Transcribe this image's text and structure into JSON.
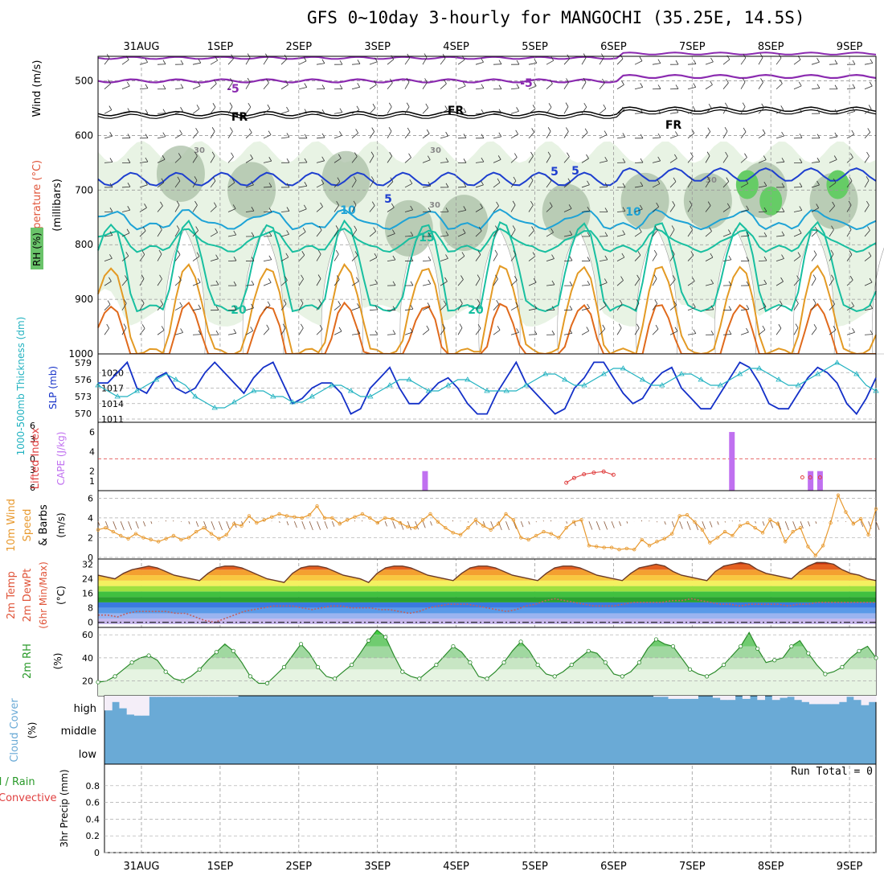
{
  "title": "GFS 0~10day 3-hourly for MANGOCHI (35.25E, 14.5S)",
  "date_labels": [
    "31AUG",
    "1SEP",
    "2SEP",
    "3SEP",
    "4SEP",
    "5SEP",
    "6SEP",
    "7SEP",
    "8SEP",
    "9SEP"
  ],
  "colors": {
    "rh_fill": "#e8f3e4",
    "rh_dark": "#a9bfa6",
    "temp_blue": "#1e3fcf",
    "temp_cyan": "#1ea3d6",
    "temp_teal": "#18bfa0",
    "temp_orange": "#e39a24",
    "temp_dark_orange": "#e06a1c",
    "purple": "#8b2bb0",
    "slp": "#1430c8",
    "thickness": "#21b2c0",
    "cape": "#c070f0",
    "wind10": "#e89a30",
    "cloud": "#6aaad6"
  },
  "panels": {
    "upper": {
      "label_wind": "Wind (m/s)",
      "label_temp": "Temperature (°C)",
      "label_rh": "RH (%)",
      "label_mb": "(millibars)"
    },
    "slp": {
      "label_thick": "1000-500mb Thickness (dm)",
      "label_slp": "SLP (mb)"
    },
    "li": {
      "label_li": "Lifted Index",
      "label_cape": "CAPE (J/kg)"
    },
    "wind10": {
      "label_a": "10m Wind",
      "label_b": "Speed",
      "label_c": "& Barbs",
      "unit": "(m/s)"
    },
    "temp2m": {
      "label_a": "2m Temp",
      "label_b": "2m DewPt",
      "label_c": "(6hr Min/Max)",
      "unit": "(°C)"
    },
    "rh2m": {
      "label": "2m RH",
      "unit": "(%)"
    },
    "cloud": {
      "label": "Cloud Cover",
      "unit": "(%)",
      "levels": [
        "high",
        "middle",
        "low"
      ]
    },
    "precip": {
      "label_a": "Total / Rain",
      "label_b": "Convective",
      "label_c": "3hr Precip (mm)",
      "run_total": "Run Total = 0"
    }
  },
  "chart_data": [
    {
      "type": "heatmap",
      "title": "Upper-air cross section",
      "ylabel": "millibars",
      "y_ticks": [
        500,
        600,
        700,
        800,
        900,
        1000
      ],
      "ylim": [
        455,
        1000
      ],
      "x": [
        "31AUG",
        "1SEP",
        "2SEP",
        "3SEP",
        "4SEP",
        "5SEP",
        "6SEP",
        "7SEP",
        "8SEP",
        "9SEP"
      ],
      "contour_labels": [
        "-5",
        "-5",
        "FR",
        "FR",
        "FR",
        "5",
        "5",
        "5",
        "10",
        "10",
        "15",
        "20",
        "20",
        "30",
        "30",
        "30",
        "30"
      ],
      "temperature_contours_c": [
        -5,
        0,
        5,
        10,
        15,
        20,
        25,
        30
      ]
    },
    {
      "type": "line",
      "title": "SLP and 1000-500mb thickness",
      "series": [
        {
          "name": "SLP (mb)",
          "ylim": [
            1011,
            1023
          ],
          "y_ticks": [
            1011,
            1014,
            1017,
            1020
          ],
          "values": [
            1018,
            1018,
            1020,
            1022,
            1017,
            1016,
            1019,
            1020,
            1017,
            1016,
            1017,
            1020,
            1022,
            1020,
            1018,
            1016,
            1019,
            1021,
            1022,
            1018,
            1014,
            1015,
            1017,
            1018,
            1018,
            1016,
            1012,
            1013,
            1017,
            1019,
            1021,
            1017,
            1014,
            1014,
            1016,
            1018,
            1019,
            1017,
            1014,
            1012,
            1012,
            1016,
            1019,
            1022,
            1018,
            1016,
            1014,
            1012,
            1013,
            1017,
            1019,
            1022,
            1022,
            1019,
            1016,
            1014,
            1015,
            1018,
            1020,
            1021,
            1017,
            1015,
            1013,
            1013,
            1016,
            1019,
            1022,
            1021,
            1018,
            1014,
            1013,
            1013,
            1016,
            1019,
            1021,
            1020,
            1018,
            1014,
            1012,
            1015,
            1019
          ]
        },
        {
          "name": "1000-500mb Thickness (dm)",
          "ylim": [
            569,
            580
          ],
          "y_ticks": [
            570,
            573,
            576,
            579
          ],
          "values": [
            575,
            574,
            573,
            573,
            574,
            575,
            576,
            577,
            576,
            575,
            573,
            572,
            571,
            571,
            572,
            573,
            574,
            574,
            573,
            573,
            572,
            572,
            573,
            574,
            575,
            575,
            574,
            573,
            573,
            574,
            575,
            576,
            576,
            575,
            574,
            574,
            575,
            576,
            576,
            575,
            574,
            574,
            574,
            574,
            575,
            576,
            577,
            577,
            576,
            575,
            575,
            576,
            577,
            578,
            578,
            577,
            576,
            575,
            575,
            576,
            577,
            577,
            576,
            575,
            575,
            576,
            577,
            578,
            578,
            577,
            576,
            575,
            575,
            576,
            577,
            578,
            579,
            578,
            577,
            575,
            574
          ]
        }
      ]
    },
    {
      "type": "bar",
      "title": "Lifted Index and CAPE",
      "series": [
        {
          "name": "CAPE (J/kg)",
          "y_ticks": [
            1,
            2,
            4,
            6
          ],
          "bars": [
            {
              "x": "3SEP 18Z",
              "value": 2
            },
            {
              "x": "7SEP 12Z",
              "value": 6
            },
            {
              "x": "8SEP 12Z",
              "value": 2
            },
            {
              "x": "8SEP 15Z",
              "value": 2
            }
          ]
        },
        {
          "name": "Lifted Index",
          "y_ticks": [
            -6,
            -3,
            0,
            3,
            6
          ],
          "reference": 0,
          "points": [
            {
              "x": "5SEP 09Z",
              "value": 4.5
            },
            {
              "x": "5SEP 12Z",
              "value": 3.6
            },
            {
              "x": "5SEP 15Z",
              "value": 2.9
            },
            {
              "x": "5SEP 18Z",
              "value": 2.6
            },
            {
              "x": "5SEP 21Z",
              "value": 2.4
            },
            {
              "x": "6SEP 00Z",
              "value": 3.0
            },
            {
              "x": "8SEP 09Z",
              "value": 3.5
            },
            {
              "x": "8SEP 12Z",
              "value": 3.5
            },
            {
              "x": "8SEP 15Z",
              "value": 3.5
            }
          ]
        }
      ]
    },
    {
      "type": "line",
      "title": "10m Wind Speed & Barbs",
      "ylabel": "(m/s)",
      "ylim": [
        0,
        6.5
      ],
      "y_ticks": [
        0,
        2,
        4,
        6
      ],
      "values": [
        2.8,
        3.0,
        2.6,
        2.2,
        1.9,
        2.4,
        2.0,
        1.8,
        1.6,
        1.9,
        2.2,
        1.8,
        2.0,
        2.6,
        3.0,
        2.4,
        1.9,
        2.3,
        3.4,
        3.2,
        4.2,
        3.5,
        3.8,
        4.1,
        4.4,
        4.2,
        4.1,
        4.0,
        4.3,
        5.2,
        4.0,
        4.0,
        3.4,
        3.8,
        4.1,
        4.4,
        4.0,
        3.5,
        4.0,
        3.9,
        3.5,
        3.1,
        3.0,
        3.8,
        4.4,
        3.6,
        3.0,
        2.5,
        2.3,
        3.0,
        3.8,
        3.2,
        2.8,
        3.4,
        4.4,
        3.8,
        2.0,
        1.8,
        2.2,
        2.6,
        2.4,
        2.0,
        3.0,
        3.6,
        3.8,
        1.2,
        1.1,
        1.0,
        1.0,
        0.8,
        0.9,
        0.8,
        1.8,
        1.2,
        1.6,
        1.9,
        2.4,
        4.2,
        4.3,
        3.6,
        2.8,
        1.5,
        2.0,
        2.6,
        2.2,
        3.2,
        3.5,
        3.0,
        2.5,
        3.8,
        3.4,
        1.6,
        2.6,
        3.0,
        1.1,
        0.2,
        1.2,
        3.5,
        6.3,
        4.6,
        3.4,
        3.9,
        2.3,
        4.9
      ]
    },
    {
      "type": "area",
      "title": "2m Temp / DewPt",
      "ylabel": "(°C)",
      "ylim": [
        -1,
        34
      ],
      "y_ticks": [
        0,
        8,
        16,
        24,
        32
      ],
      "series": [
        {
          "name": "2m Temp",
          "values": [
            26,
            25,
            24,
            27,
            29,
            30,
            31,
            30,
            28,
            26,
            25,
            24,
            23,
            27,
            30,
            31,
            31,
            30,
            28,
            26,
            24,
            23,
            22,
            27,
            30,
            31,
            31,
            30,
            28,
            26,
            25,
            24,
            22,
            27,
            30,
            31,
            31,
            30,
            28,
            26,
            25,
            24,
            23,
            27,
            30,
            31,
            31,
            30,
            28,
            26,
            25,
            24,
            23,
            27,
            30,
            31,
            31,
            30,
            28,
            26,
            25,
            24,
            23,
            27,
            30,
            31,
            32,
            31,
            28,
            26,
            25,
            24,
            23,
            28,
            31,
            32,
            33,
            32,
            29,
            27,
            26,
            25,
            24,
            28,
            31,
            33,
            33,
            32,
            29,
            27,
            26,
            24,
            23
          ]
        },
        {
          "name": "2m DewPt",
          "values": [
            4,
            4,
            3,
            5,
            6,
            6,
            6,
            6,
            5,
            5,
            3,
            1,
            0,
            2,
            4,
            6,
            7,
            8,
            9,
            9,
            9,
            8,
            7,
            8,
            9,
            9,
            8,
            8,
            8,
            7,
            7,
            6,
            5,
            6,
            8,
            9,
            10,
            10,
            10,
            9,
            8,
            7,
            6,
            7,
            9,
            10,
            12,
            13,
            12,
            11,
            10,
            9,
            9,
            9,
            10,
            11,
            11,
            11,
            11,
            12,
            12,
            13,
            12,
            11,
            10,
            10,
            9,
            10,
            10,
            10,
            10,
            9,
            10,
            10,
            11,
            11,
            11,
            11,
            11,
            11,
            11
          ]
        }
      ]
    },
    {
      "type": "area",
      "title": "2m RH",
      "ylabel": "(%)",
      "ylim": [
        10,
        65
      ],
      "y_ticks": [
        20,
        40,
        60
      ],
      "values": [
        19,
        20,
        24,
        30,
        36,
        40,
        42,
        38,
        28,
        22,
        20,
        24,
        30,
        38,
        45,
        52,
        46,
        36,
        24,
        18,
        18,
        25,
        32,
        42,
        52,
        44,
        32,
        24,
        22,
        28,
        34,
        44,
        55,
        64,
        58,
        42,
        28,
        24,
        22,
        28,
        34,
        42,
        50,
        45,
        36,
        24,
        22,
        28,
        36,
        46,
        54,
        46,
        34,
        26,
        24,
        28,
        34,
        40,
        46,
        44,
        36,
        26,
        24,
        28,
        36,
        48,
        56,
        52,
        50,
        40,
        30,
        26,
        24,
        28,
        34,
        42,
        50,
        62,
        48,
        36,
        38,
        40,
        50,
        55,
        44,
        34,
        26,
        28,
        32,
        40,
        46,
        50,
        40
      ]
    },
    {
      "type": "area",
      "title": "Cloud Cover",
      "ylabel": "(%)",
      "levels": [
        "high",
        "middle",
        "low"
      ],
      "high_cloud_pct": [
        70,
        30,
        60,
        90,
        95,
        95,
        5,
        5,
        5,
        5,
        5,
        5,
        5,
        5,
        5,
        5,
        5,
        5,
        0,
        0,
        0,
        0,
        0,
        0,
        0,
        0,
        0,
        0,
        0,
        0,
        0,
        0,
        0,
        0,
        0,
        0,
        0,
        0,
        0,
        0,
        0,
        0,
        0,
        0,
        0,
        0,
        0,
        0,
        0,
        0,
        0,
        0,
        0,
        0,
        0,
        0,
        0,
        0,
        0,
        0,
        0,
        0,
        0,
        0,
        0,
        0,
        0,
        0,
        0,
        0,
        0,
        0,
        0,
        0,
        5,
        5,
        15,
        15,
        15,
        15,
        0,
        0,
        10,
        20,
        20,
        0,
        15,
        0,
        20,
        0,
        20,
        10,
        5,
        20,
        30,
        40,
        40,
        40,
        40,
        30,
        5,
        20,
        45,
        30
      ]
    },
    {
      "type": "bar",
      "title": "3hr Precip (mm)",
      "ylim": [
        0,
        1
      ],
      "y_ticks": [
        0,
        0.2,
        0.4,
        0.6,
        0.8
      ],
      "values": [],
      "annotations": [
        "Run Total = 0"
      ]
    }
  ]
}
